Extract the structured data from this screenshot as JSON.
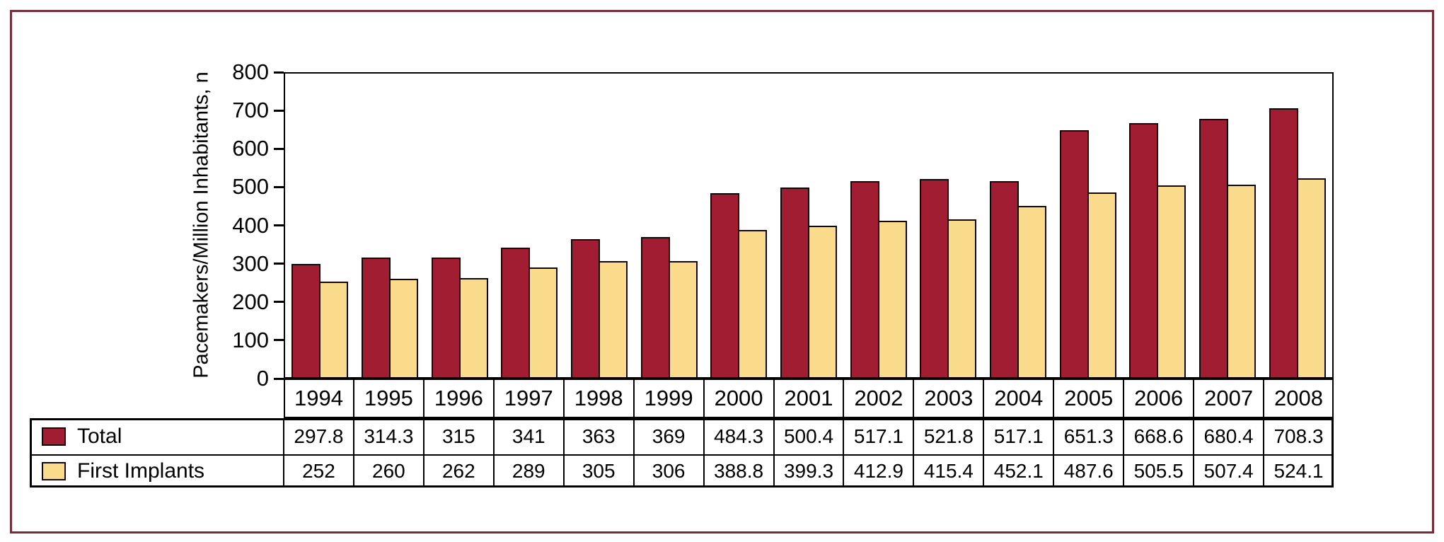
{
  "frame": {
    "border_color": "#772B3A",
    "background": "#FFFFFF"
  },
  "chart_data": {
    "type": "bar",
    "title": "",
    "xlabel": "",
    "ylabel": "Pacemakers/Million Inhabitants, n",
    "categories": [
      "1994",
      "1995",
      "1996",
      "1997",
      "1998",
      "1999",
      "2000",
      "2001",
      "2002",
      "2003",
      "2004",
      "2005",
      "2006",
      "2007",
      "2008"
    ],
    "series": [
      {
        "name": "Total",
        "color": "#A01D32",
        "values": [
          297.8,
          314.3,
          315,
          341,
          363,
          369,
          484.3,
          500.4,
          517.1,
          521.8,
          517.1,
          651.3,
          668.6,
          680.4,
          708.3
        ]
      },
      {
        "name": "First Implants",
        "color": "#FADB8C",
        "values": [
          252,
          260,
          262,
          289,
          305,
          306,
          388.8,
          399.3,
          412.9,
          415.4,
          452.1,
          487.6,
          505.5,
          507.4,
          524.1
        ]
      }
    ],
    "ylim": [
      0,
      800
    ],
    "yticks": [
      0,
      100,
      200,
      300,
      400,
      500,
      600,
      700,
      800
    ],
    "grid": false,
    "legend_position": "table-left",
    "axis_color": "#000000"
  }
}
